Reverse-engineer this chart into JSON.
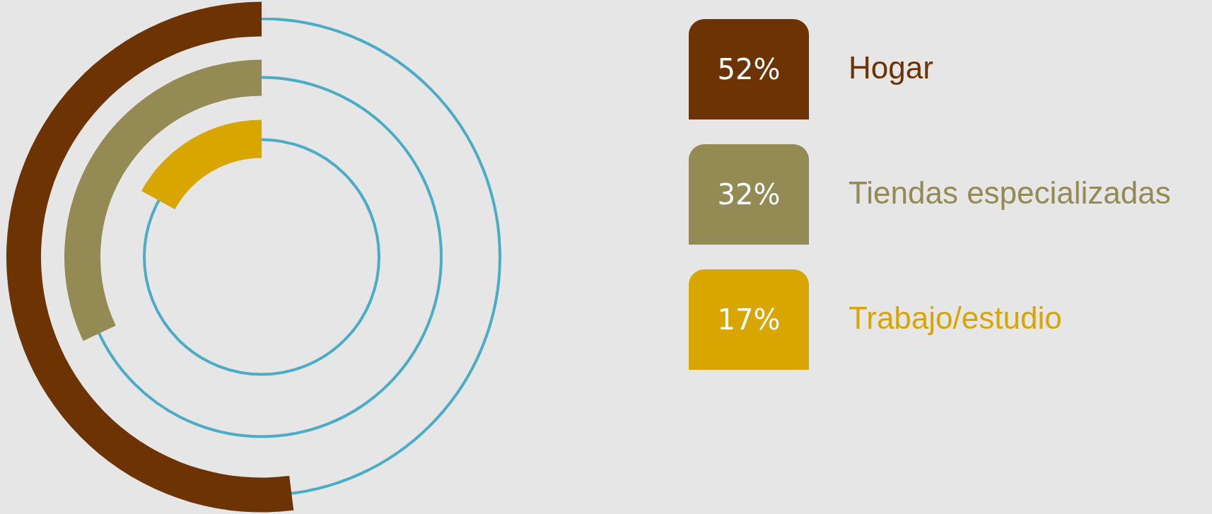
{
  "chart_data": {
    "type": "other",
    "categories": [
      "Hogar",
      "Tiendas especializadas",
      "Trabajo/estudio"
    ],
    "values": [
      52,
      32,
      17
    ],
    "colors": [
      "#6e3303",
      "#948a54",
      "#d9a600"
    ],
    "value_labels": [
      "52%",
      "32%",
      "17%"
    ]
  }
}
